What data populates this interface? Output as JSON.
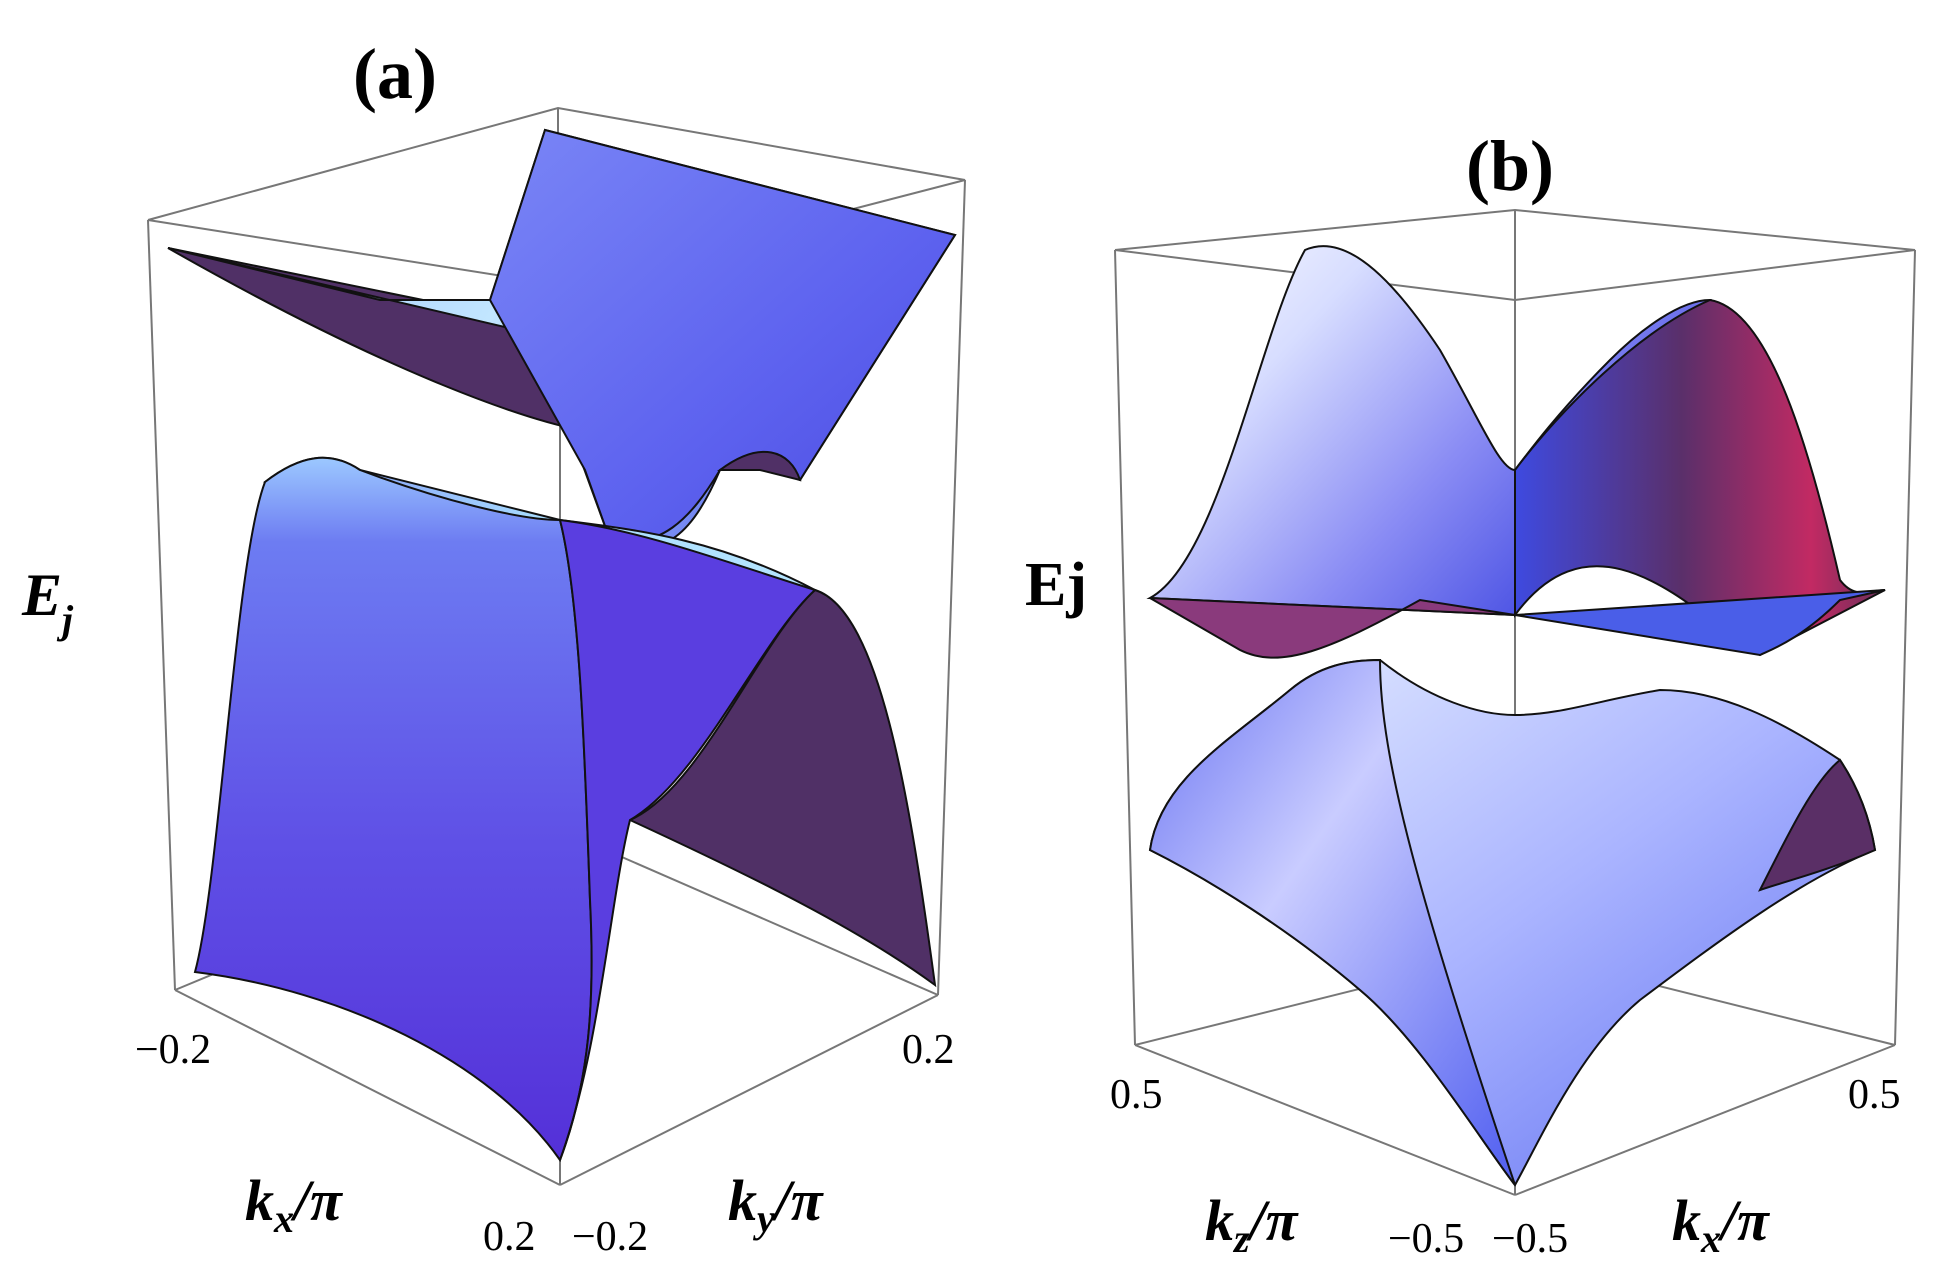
{
  "chart_data": [
    {
      "panel": "(a)",
      "type": "surface3d",
      "zlabel": "E",
      "zlabel_sub": "j",
      "xlabel": "k",
      "xlabel_sub": "x",
      "xlabel_suffix": "/π",
      "ylabel": "k",
      "ylabel_sub": "y",
      "ylabel_suffix": "/π",
      "x_ticks": [
        "−0.2",
        "0.2"
      ],
      "y_ticks": [
        "−0.2",
        "0.2"
      ],
      "xlim": [
        -0.2,
        0.2
      ],
      "ylim": [
        -0.2,
        0.2
      ],
      "bands": [
        "upper",
        "lower"
      ],
      "colors": {
        "light": "#9fd0ff",
        "mid": "#5860ee",
        "dark": "#4e2e66"
      }
    },
    {
      "panel": "(b)",
      "type": "surface3d",
      "zlabel": "Ej",
      "xlabel": "k",
      "xlabel_sub": "z",
      "xlabel_suffix": "/π",
      "ylabel": "k",
      "ylabel_sub": "x",
      "ylabel_suffix": "/π",
      "x_ticks": [
        "0.5",
        "−0.5"
      ],
      "y_ticks": [
        "−0.5",
        "0.5"
      ],
      "xlim": [
        -0.5,
        0.5
      ],
      "ylim": [
        -0.5,
        0.5
      ],
      "bands": [
        "upper",
        "lower"
      ],
      "colors": {
        "light": "#eef2ff",
        "mid": "#5a68f0",
        "dark": "#5a2c5c",
        "accent": "#d8245e"
      }
    }
  ]
}
